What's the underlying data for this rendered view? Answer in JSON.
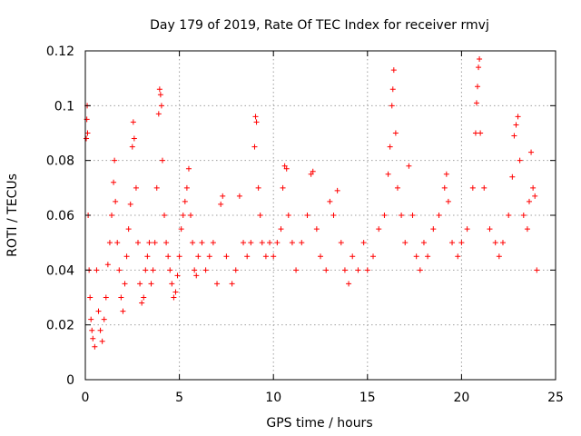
{
  "chart_data": {
    "type": "scatter",
    "title": "Day 179 of 2019, Rate Of TEC Index for receiver rmvj",
    "xlabel": "GPS time / hours",
    "ylabel": "ROTI / TECUs",
    "xlim": [
      0,
      25
    ],
    "ylim": [
      0,
      0.12
    ],
    "xticks": [
      0,
      5,
      10,
      15,
      20,
      25
    ],
    "xtick_labels": [
      "0",
      "5",
      "10",
      "15",
      "20",
      "25"
    ],
    "yticks": [
      0,
      0.02,
      0.04,
      0.06,
      0.08,
      0.1,
      0.12
    ],
    "ytick_labels": [
      "0",
      "0.02",
      "0.04",
      "0.06",
      "0.08",
      "0.1",
      "0.12"
    ],
    "grid": true,
    "marker": "+",
    "series": [
      {
        "name": "ROTI",
        "color": "#ff0000",
        "points": [
          [
            0.05,
            0.088
          ],
          [
            0.08,
            0.095
          ],
          [
            0.1,
            0.1
          ],
          [
            0.12,
            0.09
          ],
          [
            0.15,
            0.06
          ],
          [
            0.2,
            0.04
          ],
          [
            0.25,
            0.03
          ],
          [
            0.3,
            0.022
          ],
          [
            0.35,
            0.018
          ],
          [
            0.4,
            0.015
          ],
          [
            0.5,
            0.012
          ],
          [
            0.6,
            0.04
          ],
          [
            0.7,
            0.025
          ],
          [
            0.8,
            0.018
          ],
          [
            0.9,
            0.014
          ],
          [
            1.0,
            0.022
          ],
          [
            1.1,
            0.03
          ],
          [
            1.2,
            0.042
          ],
          [
            1.3,
            0.05
          ],
          [
            1.4,
            0.06
          ],
          [
            1.5,
            0.072
          ],
          [
            1.55,
            0.08
          ],
          [
            1.6,
            0.065
          ],
          [
            1.7,
            0.05
          ],
          [
            1.8,
            0.04
          ],
          [
            1.9,
            0.03
          ],
          [
            2.0,
            0.025
          ],
          [
            2.1,
            0.035
          ],
          [
            2.2,
            0.045
          ],
          [
            2.3,
            0.055
          ],
          [
            2.4,
            0.064
          ],
          [
            2.5,
            0.085
          ],
          [
            2.55,
            0.094
          ],
          [
            2.6,
            0.088
          ],
          [
            2.7,
            0.07
          ],
          [
            2.8,
            0.05
          ],
          [
            2.9,
            0.035
          ],
          [
            3.0,
            0.028
          ],
          [
            3.1,
            0.03
          ],
          [
            3.2,
            0.04
          ],
          [
            3.3,
            0.045
          ],
          [
            3.4,
            0.05
          ],
          [
            3.5,
            0.035
          ],
          [
            3.6,
            0.04
          ],
          [
            3.7,
            0.05
          ],
          [
            3.8,
            0.07
          ],
          [
            3.9,
            0.097
          ],
          [
            3.95,
            0.106
          ],
          [
            4.0,
            0.104
          ],
          [
            4.05,
            0.1
          ],
          [
            4.1,
            0.08
          ],
          [
            4.2,
            0.06
          ],
          [
            4.3,
            0.05
          ],
          [
            4.4,
            0.045
          ],
          [
            4.5,
            0.04
          ],
          [
            4.6,
            0.035
          ],
          [
            4.7,
            0.03
          ],
          [
            4.8,
            0.032
          ],
          [
            4.9,
            0.038
          ],
          [
            5.0,
            0.045
          ],
          [
            5.1,
            0.055
          ],
          [
            5.2,
            0.06
          ],
          [
            5.3,
            0.065
          ],
          [
            5.4,
            0.07
          ],
          [
            5.5,
            0.077
          ],
          [
            5.6,
            0.06
          ],
          [
            5.7,
            0.05
          ],
          [
            5.8,
            0.04
          ],
          [
            5.9,
            0.038
          ],
          [
            6.0,
            0.045
          ],
          [
            6.2,
            0.05
          ],
          [
            6.4,
            0.04
          ],
          [
            6.6,
            0.045
          ],
          [
            6.8,
            0.05
          ],
          [
            7.0,
            0.035
          ],
          [
            7.2,
            0.064
          ],
          [
            7.3,
            0.067
          ],
          [
            7.5,
            0.045
          ],
          [
            7.8,
            0.035
          ],
          [
            8.0,
            0.04
          ],
          [
            8.2,
            0.067
          ],
          [
            8.4,
            0.05
          ],
          [
            8.6,
            0.045
          ],
          [
            8.8,
            0.05
          ],
          [
            9.0,
            0.085
          ],
          [
            9.05,
            0.096
          ],
          [
            9.1,
            0.094
          ],
          [
            9.2,
            0.07
          ],
          [
            9.3,
            0.06
          ],
          [
            9.4,
            0.05
          ],
          [
            9.6,
            0.045
          ],
          [
            9.8,
            0.05
          ],
          [
            10.0,
            0.045
          ],
          [
            10.2,
            0.05
          ],
          [
            10.4,
            0.055
          ],
          [
            10.5,
            0.07
          ],
          [
            10.6,
            0.078
          ],
          [
            10.7,
            0.077
          ],
          [
            10.8,
            0.06
          ],
          [
            11.0,
            0.05
          ],
          [
            11.2,
            0.04
          ],
          [
            11.5,
            0.05
          ],
          [
            11.8,
            0.06
          ],
          [
            12.0,
            0.075
          ],
          [
            12.1,
            0.076
          ],
          [
            12.3,
            0.055
          ],
          [
            12.5,
            0.045
          ],
          [
            12.8,
            0.04
          ],
          [
            13.0,
            0.065
          ],
          [
            13.2,
            0.06
          ],
          [
            13.4,
            0.069
          ],
          [
            13.6,
            0.05
          ],
          [
            13.8,
            0.04
          ],
          [
            14.0,
            0.035
          ],
          [
            14.2,
            0.045
          ],
          [
            14.5,
            0.04
          ],
          [
            14.8,
            0.05
          ],
          [
            15.0,
            0.04
          ],
          [
            15.3,
            0.045
          ],
          [
            15.6,
            0.055
          ],
          [
            15.9,
            0.06
          ],
          [
            16.1,
            0.075
          ],
          [
            16.2,
            0.085
          ],
          [
            16.3,
            0.1
          ],
          [
            16.35,
            0.106
          ],
          [
            16.4,
            0.113
          ],
          [
            16.5,
            0.09
          ],
          [
            16.6,
            0.07
          ],
          [
            16.8,
            0.06
          ],
          [
            17.0,
            0.05
          ],
          [
            17.2,
            0.078
          ],
          [
            17.4,
            0.06
          ],
          [
            17.6,
            0.045
          ],
          [
            17.8,
            0.04
          ],
          [
            18.0,
            0.05
          ],
          [
            18.2,
            0.045
          ],
          [
            18.5,
            0.055
          ],
          [
            18.8,
            0.06
          ],
          [
            19.1,
            0.07
          ],
          [
            19.2,
            0.075
          ],
          [
            19.3,
            0.065
          ],
          [
            19.5,
            0.05
          ],
          [
            19.8,
            0.045
          ],
          [
            20.0,
            0.05
          ],
          [
            20.3,
            0.055
          ],
          [
            20.6,
            0.07
          ],
          [
            20.75,
            0.09
          ],
          [
            20.8,
            0.101
          ],
          [
            20.85,
            0.107
          ],
          [
            20.9,
            0.114
          ],
          [
            20.95,
            0.117
          ],
          [
            21.0,
            0.09
          ],
          [
            21.2,
            0.07
          ],
          [
            21.5,
            0.055
          ],
          [
            21.8,
            0.05
          ],
          [
            22.0,
            0.045
          ],
          [
            22.2,
            0.05
          ],
          [
            22.5,
            0.06
          ],
          [
            22.7,
            0.074
          ],
          [
            22.8,
            0.089
          ],
          [
            22.9,
            0.093
          ],
          [
            23.0,
            0.096
          ],
          [
            23.1,
            0.08
          ],
          [
            23.3,
            0.06
          ],
          [
            23.5,
            0.055
          ],
          [
            23.6,
            0.065
          ],
          [
            23.7,
            0.083
          ],
          [
            23.8,
            0.07
          ],
          [
            23.9,
            0.067
          ],
          [
            24.0,
            0.04
          ]
        ]
      }
    ]
  }
}
